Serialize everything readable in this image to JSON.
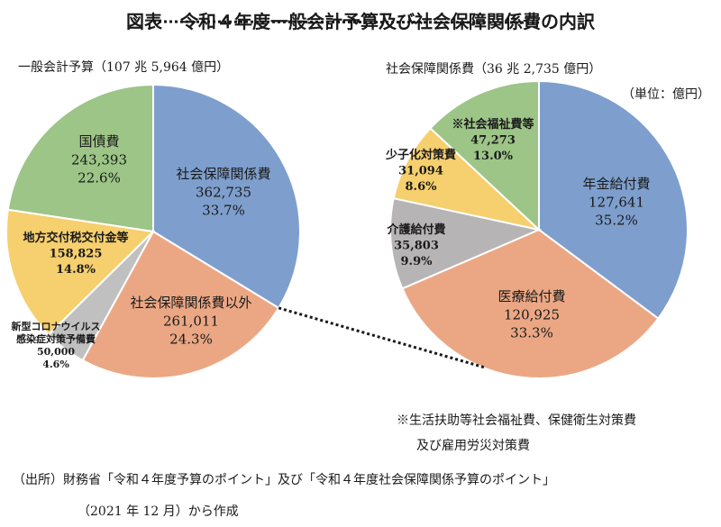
{
  "title": "図表　令和４年度一般会計予算及び社会保障関係費の内訳",
  "unit_label": "（単位：億円）",
  "note_lines": [
    "※生活扶助等社会福祉費、保健衛生対策費",
    "及び雇用労災対策費"
  ],
  "source_lines": [
    "（出所）財務省「令和４年度予算のポイント」及び「令和４年度社会保障関係予算のポイント」",
    "（2021 年 12 月）から作成"
  ],
  "chart_data": [
    {
      "type": "pie",
      "title": "一般会計予算（107 兆 5,964 億円）",
      "slices": [
        {
          "name": "社会保障関係費",
          "value": "362,735",
          "percent": "33.7%",
          "amount": 362735,
          "color": "#7e9fcd"
        },
        {
          "name": "社会保障関係費以外",
          "value": "261,011",
          "percent": "24.3%",
          "amount": 261011,
          "color": "#eba784"
        },
        {
          "name": "新型コロナウイルス感染症対策予備費",
          "value": "50,000",
          "percent": "4.6%",
          "amount": 50000,
          "color": "#c0c0c0"
        },
        {
          "name": "地方交付税交付金等",
          "value": "158,825",
          "percent": "14.8%",
          "amount": 158825,
          "color": "#f6cf6e"
        },
        {
          "name": "国債費",
          "value": "243,393",
          "percent": "22.6%",
          "amount": 243393,
          "color": "#9cc587"
        }
      ]
    },
    {
      "type": "pie",
      "title": "社会保障関係費（36 兆 2,735 億円）",
      "slices": [
        {
          "name": "年金給付費",
          "value": "127,641",
          "percent": "35.2%",
          "amount": 127641,
          "color": "#7e9fcd"
        },
        {
          "name": "医療給付費",
          "value": "120,925",
          "percent": "33.3%",
          "amount": 120925,
          "color": "#eba784"
        },
        {
          "name": "介護給付費",
          "value": "35,803",
          "percent": "9.9%",
          "amount": 35803,
          "color": "#b6b4b4"
        },
        {
          "name": "少子化対策費",
          "value": "31,094",
          "percent": "8.6%",
          "amount": 31094,
          "color": "#f6cf6e"
        },
        {
          "name": "※社会福祉費等",
          "value": "47,273",
          "percent": "13.0%",
          "amount": 47273,
          "color": "#9cc587"
        }
      ]
    }
  ]
}
